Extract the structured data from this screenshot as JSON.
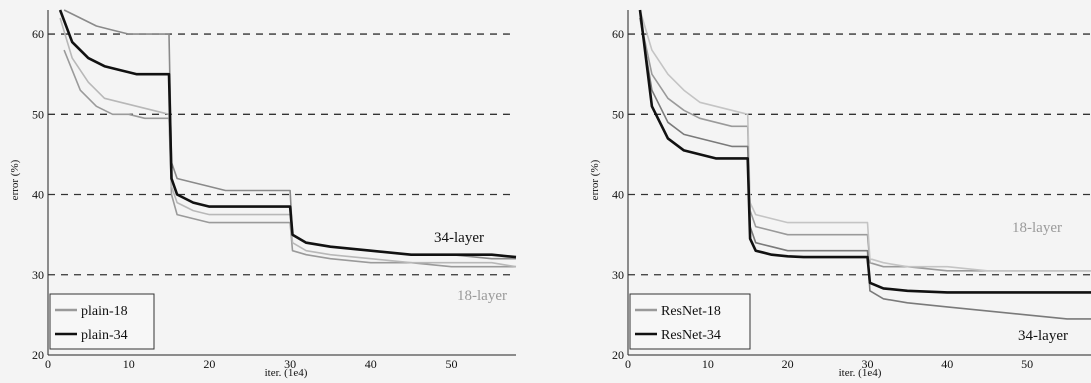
{
  "chart_data": [
    {
      "type": "line",
      "xlabel": "iter. (1e4)",
      "ylabel": "error (%)",
      "xlim": [
        0,
        58
      ],
      "ylim": [
        20,
        63
      ],
      "xticks": [
        0,
        10,
        20,
        30,
        40,
        50
      ],
      "yticks": [
        20,
        30,
        40,
        50,
        60
      ],
      "grid": "dashed horizontal at 30, 40, 50, 60",
      "legend_position": "bottom-left",
      "legend": [
        "plain-18",
        "plain-34"
      ],
      "annotations": [
        "34-layer",
        "18-layer"
      ],
      "series": [
        {
          "name": "plain-18",
          "role": "train",
          "color": "#9a9a9a",
          "x": [
            2,
            4,
            6,
            8,
            10,
            12,
            14,
            15,
            15.3,
            16,
            18,
            20,
            22,
            25,
            28,
            30,
            30.3,
            32,
            35,
            40,
            45,
            50,
            55,
            58
          ],
          "y": [
            58,
            53,
            51,
            50,
            50,
            49.5,
            49.5,
            49.5,
            40,
            37.5,
            37,
            36.5,
            36.5,
            36.5,
            36.5,
            36.5,
            33,
            32.5,
            32,
            31.5,
            31.5,
            31,
            31,
            31
          ]
        },
        {
          "name": "plain-18",
          "role": "val",
          "color": "#b8b8b8",
          "x": [
            1.5,
            3,
            5,
            7,
            9,
            11,
            13,
            15,
            15.3,
            16,
            18,
            20,
            22,
            25,
            28,
            30,
            30.3,
            32,
            35,
            40,
            45,
            50,
            55,
            58
          ],
          "y": [
            62,
            57,
            54,
            52,
            51.5,
            51,
            50.5,
            50,
            41,
            39,
            38,
            37.5,
            37.5,
            37.5,
            37.5,
            37.5,
            34,
            33,
            32.5,
            32,
            31.5,
            31.5,
            31.5,
            31
          ]
        },
        {
          "name": "plain-34",
          "role": "train",
          "color": "#8a8a8a",
          "x": [
            2,
            4,
            6,
            8,
            10,
            12,
            14,
            15,
            15.3,
            16,
            18,
            20,
            22,
            25,
            28,
            30,
            30.3,
            32,
            35,
            40,
            45,
            50,
            55,
            58
          ],
          "y": [
            63,
            62,
            61,
            60.5,
            60,
            60,
            60,
            60,
            44,
            42,
            41.5,
            41,
            40.5,
            40.5,
            40.5,
            40.5,
            35,
            34,
            33.5,
            33,
            32.5,
            32.5,
            32,
            32
          ]
        },
        {
          "name": "plain-34",
          "role": "val",
          "color": "#111111",
          "x": [
            1.5,
            3,
            5,
            7,
            9,
            11,
            13,
            15,
            15.3,
            16,
            18,
            20,
            22,
            25,
            28,
            30,
            30.3,
            32,
            35,
            40,
            45,
            50,
            55,
            58
          ],
          "y": [
            63,
            59,
            57,
            56,
            55.5,
            55,
            55,
            55,
            42,
            40,
            39,
            38.5,
            38.5,
            38.5,
            38.5,
            38.5,
            35,
            34,
            33.5,
            33,
            32.5,
            32.5,
            32.5,
            32.2
          ]
        }
      ]
    },
    {
      "type": "line",
      "xlabel": "iter. (1e4)",
      "ylabel": "error (%)",
      "xlim": [
        0,
        58
      ],
      "ylim": [
        20,
        63
      ],
      "xticks": [
        0,
        10,
        20,
        30,
        40,
        50
      ],
      "yticks": [
        20,
        30,
        40,
        50,
        60
      ],
      "grid": "dashed horizontal at 30, 40, 50, 60",
      "legend_position": "bottom-left",
      "legend": [
        "ResNet-18",
        "ResNet-34"
      ],
      "annotations": [
        "18-layer",
        "34-layer"
      ],
      "series": [
        {
          "name": "ResNet-18",
          "role": "train",
          "color": "#9a9a9a",
          "x": [
            1.5,
            3,
            5,
            7,
            9,
            11,
            13,
            15,
            15.3,
            16,
            18,
            20,
            22,
            25,
            28,
            30,
            30.3,
            32,
            35,
            40,
            45,
            50,
            55,
            58
          ],
          "y": [
            62,
            55,
            52,
            50.5,
            49.5,
            49,
            48.5,
            48.5,
            38,
            36,
            35.5,
            35,
            35,
            35,
            35,
            35,
            31.5,
            31,
            31,
            30.5,
            30.5,
            30.5,
            30.5,
            30.5
          ]
        },
        {
          "name": "ResNet-18",
          "role": "val",
          "color": "#c4c4c4",
          "x": [
            1.5,
            3,
            5,
            7,
            9,
            11,
            13,
            15,
            15.3,
            16,
            18,
            20,
            22,
            25,
            28,
            30,
            30.3,
            32,
            35,
            40,
            45,
            50,
            55,
            58
          ],
          "y": [
            63,
            58,
            55,
            53,
            51.5,
            51,
            50.5,
            50,
            39,
            37.5,
            37,
            36.5,
            36.5,
            36.5,
            36.5,
            36.5,
            32,
            31.5,
            31,
            31,
            30.5,
            30.5,
            30.5,
            30.5
          ]
        },
        {
          "name": "ResNet-34",
          "role": "train",
          "color": "#7a7a7a",
          "x": [
            1.5,
            3,
            5,
            7,
            9,
            11,
            13,
            15,
            15.3,
            16,
            18,
            20,
            22,
            25,
            28,
            30,
            30.3,
            32,
            35,
            40,
            45,
            50,
            55,
            58
          ],
          "y": [
            62,
            53,
            49,
            47.5,
            47,
            46.5,
            46,
            46,
            36,
            34,
            33.5,
            33,
            33,
            33,
            33,
            33,
            28,
            27,
            26.5,
            26,
            25.5,
            25,
            24.5,
            24.5
          ]
        },
        {
          "name": "ResNet-34",
          "role": "val",
          "color": "#111111",
          "x": [
            1.5,
            3,
            5,
            7,
            9,
            11,
            13,
            15,
            15.3,
            16,
            18,
            20,
            22,
            25,
            28,
            30,
            30.3,
            32,
            35,
            40,
            45,
            50,
            55,
            58
          ],
          "y": [
            63,
            51,
            47,
            45.5,
            45,
            44.5,
            44.5,
            44.5,
            34.5,
            33,
            32.5,
            32.3,
            32.2,
            32.2,
            32.2,
            32.2,
            29,
            28.3,
            28,
            27.8,
            27.8,
            27.8,
            27.8,
            27.8
          ]
        }
      ]
    }
  ]
}
